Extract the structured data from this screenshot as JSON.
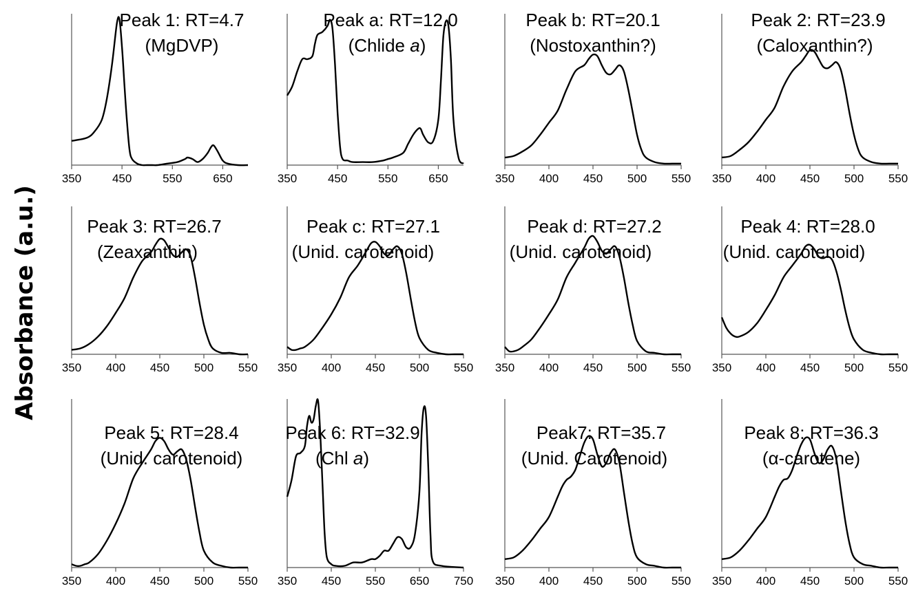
{
  "figure": {
    "ylabel": "Absorbance (a.u.)"
  },
  "chart_data": [
    {
      "type": "line",
      "title": "Peak 1: RT=4.7",
      "subtitle": "(MgDVP)",
      "xlim": [
        350,
        700
      ],
      "xticks": [
        350,
        450,
        550,
        650
      ],
      "ylim": [
        0,
        1
      ],
      "series": [
        {
          "x": [
            350,
            380,
            395,
            410,
            420,
            430,
            440,
            445,
            450,
            455,
            460,
            465,
            470,
            480,
            490,
            500,
            510,
            520,
            540,
            560,
            575,
            580,
            590,
            600,
            610,
            620,
            627,
            632,
            640,
            650,
            660,
            680,
            700
          ],
          "y": [
            0.16,
            0.18,
            0.22,
            0.3,
            0.44,
            0.66,
            0.94,
            0.96,
            0.78,
            0.52,
            0.28,
            0.1,
            0.04,
            0.01,
            0,
            0,
            0,
            0,
            0.01,
            0.02,
            0.04,
            0.05,
            0.04,
            0.02,
            0.04,
            0.08,
            0.12,
            0.13,
            0.09,
            0.03,
            0.01,
            0,
            0
          ]
        }
      ]
    },
    {
      "type": "line",
      "title": "Peak a: RT=12.0",
      "subtitle": "(Chlide a)",
      "xlim": [
        350,
        700
      ],
      "xticks": [
        350,
        450,
        550,
        650
      ],
      "ylim": [
        0,
        1
      ],
      "series": [
        {
          "x": [
            350,
            360,
            370,
            380,
            390,
            400,
            405,
            410,
            420,
            430,
            435,
            440,
            445,
            450,
            455,
            460,
            470,
            480,
            500,
            520,
            540,
            550,
            560,
            580,
            590,
            600,
            610,
            615,
            620,
            630,
            640,
            650,
            655,
            660,
            665,
            670,
            675,
            680,
            690,
            700
          ],
          "y": [
            0.46,
            0.52,
            0.62,
            0.7,
            0.7,
            0.72,
            0.8,
            0.86,
            0.88,
            0.92,
            0.96,
            0.9,
            0.66,
            0.35,
            0.12,
            0.04,
            0.03,
            0.02,
            0.02,
            0.02,
            0.03,
            0.04,
            0.05,
            0.08,
            0.14,
            0.2,
            0.24,
            0.24,
            0.2,
            0.15,
            0.16,
            0.3,
            0.55,
            0.85,
            0.95,
            0.92,
            0.7,
            0.3,
            0.05,
            0.01
          ]
        }
      ]
    },
    {
      "type": "line",
      "title": "Peak b: RT=20.1",
      "subtitle": "(Nostoxanthin?)",
      "xlim": [
        350,
        550
      ],
      "xticks": [
        350,
        400,
        450,
        500,
        550
      ],
      "ylim": [
        0,
        1
      ],
      "series": [
        {
          "x": [
            350,
            360,
            370,
            380,
            390,
            400,
            410,
            420,
            430,
            440,
            445,
            450,
            455,
            460,
            465,
            470,
            475,
            480,
            485,
            490,
            495,
            500,
            505,
            510,
            520,
            530,
            540,
            550
          ],
          "y": [
            0.05,
            0.06,
            0.09,
            0.13,
            0.2,
            0.28,
            0.36,
            0.5,
            0.62,
            0.66,
            0.7,
            0.73,
            0.72,
            0.66,
            0.61,
            0.6,
            0.63,
            0.66,
            0.62,
            0.5,
            0.35,
            0.2,
            0.1,
            0.05,
            0.02,
            0.01,
            0.01,
            0.01
          ]
        }
      ]
    },
    {
      "type": "line",
      "title": "Peak 2: RT=23.9",
      "subtitle": "(Caloxanthin?)",
      "xlim": [
        350,
        550
      ],
      "xticks": [
        350,
        400,
        450,
        500,
        550
      ],
      "ylim": [
        0,
        1
      ],
      "series": [
        {
          "x": [
            350,
            360,
            370,
            380,
            390,
            400,
            410,
            420,
            430,
            440,
            445,
            450,
            455,
            460,
            465,
            470,
            475,
            480,
            485,
            490,
            495,
            500,
            505,
            510,
            520,
            530,
            540,
            550
          ],
          "y": [
            0.05,
            0.06,
            0.1,
            0.15,
            0.22,
            0.3,
            0.38,
            0.52,
            0.62,
            0.68,
            0.72,
            0.76,
            0.75,
            0.7,
            0.65,
            0.64,
            0.66,
            0.68,
            0.63,
            0.5,
            0.34,
            0.2,
            0.1,
            0.05,
            0.02,
            0.01,
            0.01,
            0.01
          ]
        }
      ]
    },
    {
      "type": "line",
      "title": "Peak 3: RT=26.7",
      "subtitle": "(Zeaxanthin)",
      "xlim": [
        350,
        550
      ],
      "xticks": [
        350,
        400,
        450,
        500,
        550
      ],
      "ylim": [
        0,
        1
      ],
      "series": [
        {
          "x": [
            350,
            360,
            370,
            380,
            390,
            400,
            410,
            420,
            430,
            440,
            445,
            450,
            455,
            460,
            465,
            470,
            475,
            480,
            485,
            490,
            495,
            500,
            505,
            510,
            520,
            530,
            540,
            550
          ],
          "y": [
            0.03,
            0.04,
            0.07,
            0.12,
            0.19,
            0.28,
            0.38,
            0.52,
            0.63,
            0.69,
            0.74,
            0.78,
            0.77,
            0.72,
            0.67,
            0.66,
            0.69,
            0.71,
            0.66,
            0.52,
            0.35,
            0.2,
            0.1,
            0.04,
            0.01,
            0.01,
            0,
            0
          ]
        }
      ]
    },
    {
      "type": "line",
      "title": "Peak c: RT=27.1",
      "subtitle": "(Unid. carotenoid)",
      "xlim": [
        350,
        550
      ],
      "xticks": [
        350,
        400,
        450,
        500,
        550
      ],
      "ylim": [
        0,
        1
      ],
      "series": [
        {
          "x": [
            350,
            355,
            360,
            365,
            370,
            380,
            390,
            400,
            410,
            420,
            430,
            440,
            445,
            450,
            455,
            460,
            465,
            470,
            475,
            480,
            485,
            490,
            495,
            500,
            510,
            520,
            530,
            540,
            550
          ],
          "y": [
            0.05,
            0.03,
            0.03,
            0.04,
            0.05,
            0.1,
            0.18,
            0.27,
            0.38,
            0.52,
            0.6,
            0.7,
            0.75,
            0.76,
            0.73,
            0.68,
            0.67,
            0.71,
            0.73,
            0.68,
            0.55,
            0.38,
            0.22,
            0.11,
            0.03,
            0.01,
            0,
            0,
            0
          ]
        }
      ]
    },
    {
      "type": "line",
      "title": "Peak d: RT=27.2",
      "subtitle": "(Unid. carotenoid)",
      "xlim": [
        350,
        550
      ],
      "xticks": [
        350,
        400,
        450,
        500,
        550
      ],
      "ylim": [
        0,
        1
      ],
      "series": [
        {
          "x": [
            350,
            355,
            360,
            365,
            370,
            380,
            390,
            400,
            410,
            420,
            430,
            440,
            445,
            450,
            455,
            460,
            465,
            470,
            475,
            480,
            485,
            490,
            495,
            500,
            510,
            520,
            530,
            540,
            550
          ],
          "y": [
            0.05,
            0.02,
            0.02,
            0.03,
            0.05,
            0.1,
            0.18,
            0.27,
            0.37,
            0.52,
            0.62,
            0.72,
            0.78,
            0.8,
            0.76,
            0.7,
            0.68,
            0.71,
            0.73,
            0.66,
            0.52,
            0.35,
            0.2,
            0.09,
            0.02,
            0.01,
            0,
            0,
            0
          ]
        }
      ]
    },
    {
      "type": "line",
      "title": "Peak 4: RT=28.0",
      "subtitle": "(Unid. carotenoid)",
      "xlim": [
        350,
        550
      ],
      "xticks": [
        350,
        400,
        450,
        500,
        550
      ],
      "ylim": [
        0,
        1
      ],
      "series": [
        {
          "x": [
            350,
            355,
            360,
            365,
            370,
            380,
            390,
            400,
            410,
            420,
            430,
            440,
            445,
            450,
            455,
            460,
            465,
            470,
            475,
            480,
            485,
            490,
            495,
            500,
            510,
            520,
            530,
            540,
            550
          ],
          "y": [
            0.25,
            0.18,
            0.14,
            0.12,
            0.12,
            0.15,
            0.21,
            0.3,
            0.4,
            0.52,
            0.6,
            0.68,
            0.73,
            0.74,
            0.71,
            0.66,
            0.65,
            0.66,
            0.64,
            0.56,
            0.44,
            0.3,
            0.18,
            0.1,
            0.03,
            0.01,
            0,
            0,
            0
          ]
        }
      ]
    },
    {
      "type": "line",
      "title": "Peak 5: RT=28.4",
      "subtitle": "(Unid. carotenoid)",
      "xlim": [
        350,
        550
      ],
      "xticks": [
        350,
        400,
        450,
        500,
        550
      ],
      "ylim": [
        0,
        1
      ],
      "series": [
        {
          "x": [
            350,
            355,
            360,
            365,
            370,
            380,
            390,
            400,
            410,
            420,
            430,
            440,
            445,
            450,
            455,
            460,
            465,
            470,
            475,
            480,
            485,
            490,
            495,
            500,
            510,
            520,
            530,
            540,
            550
          ],
          "y": [
            0.02,
            0.01,
            0.01,
            0.02,
            0.03,
            0.08,
            0.16,
            0.26,
            0.38,
            0.53,
            0.62,
            0.7,
            0.75,
            0.77,
            0.75,
            0.7,
            0.67,
            0.69,
            0.7,
            0.64,
            0.52,
            0.36,
            0.21,
            0.1,
            0.03,
            0.01,
            0,
            0,
            0
          ]
        }
      ]
    },
    {
      "type": "line",
      "title": "Peak 6: RT=32.9",
      "subtitle": "(Chl a)",
      "xlim": [
        350,
        750
      ],
      "xticks": [
        350,
        450,
        550,
        650,
        750
      ],
      "ylim": [
        0,
        1
      ],
      "series": [
        {
          "x": [
            350,
            360,
            370,
            380,
            390,
            395,
            400,
            405,
            410,
            415,
            420,
            425,
            430,
            435,
            440,
            450,
            460,
            480,
            500,
            520,
            540,
            550,
            560,
            570,
            580,
            590,
            600,
            610,
            620,
            630,
            640,
            650,
            655,
            660,
            665,
            670,
            675,
            680,
            700,
            750
          ],
          "y": [
            0.42,
            0.52,
            0.66,
            0.68,
            0.72,
            0.84,
            0.9,
            0.86,
            0.88,
            0.96,
            0.99,
            0.8,
            0.5,
            0.2,
            0.06,
            0.02,
            0.01,
            0.01,
            0.03,
            0.03,
            0.05,
            0.05,
            0.07,
            0.1,
            0.1,
            0.14,
            0.18,
            0.17,
            0.12,
            0.12,
            0.2,
            0.45,
            0.8,
            0.95,
            0.9,
            0.6,
            0.2,
            0.04,
            0.01,
            0
          ]
        }
      ]
    },
    {
      "type": "line",
      "title": "Peak7: RT=35.7",
      "subtitle": "(Unid. Carotenoid)",
      "xlim": [
        350,
        550
      ],
      "xticks": [
        350,
        400,
        450,
        500,
        550
      ],
      "ylim": [
        0,
        1
      ],
      "series": [
        {
          "x": [
            350,
            360,
            370,
            380,
            390,
            400,
            410,
            415,
            420,
            425,
            430,
            435,
            440,
            445,
            450,
            455,
            460,
            465,
            470,
            475,
            480,
            485,
            490,
            495,
            500,
            510,
            520,
            530,
            540,
            550
          ],
          "y": [
            0.05,
            0.06,
            0.1,
            0.16,
            0.23,
            0.3,
            0.42,
            0.48,
            0.52,
            0.54,
            0.58,
            0.66,
            0.74,
            0.78,
            0.76,
            0.67,
            0.6,
            0.62,
            0.68,
            0.7,
            0.62,
            0.45,
            0.28,
            0.14,
            0.06,
            0.02,
            0.01,
            0,
            0,
            0
          ]
        }
      ]
    },
    {
      "type": "line",
      "title": "Peak 8: RT=36.3",
      "subtitle": "(α-carotene)",
      "xlim": [
        350,
        550
      ],
      "xticks": [
        350,
        400,
        450,
        500,
        550
      ],
      "ylim": [
        0,
        1
      ],
      "series": [
        {
          "x": [
            350,
            360,
            370,
            380,
            390,
            400,
            410,
            415,
            420,
            425,
            430,
            435,
            440,
            445,
            450,
            455,
            460,
            465,
            470,
            475,
            480,
            485,
            490,
            495,
            500,
            510,
            520,
            530,
            540,
            550
          ],
          "y": [
            0.05,
            0.06,
            0.1,
            0.16,
            0.23,
            0.3,
            0.42,
            0.48,
            0.52,
            0.53,
            0.58,
            0.66,
            0.73,
            0.77,
            0.76,
            0.68,
            0.62,
            0.64,
            0.7,
            0.72,
            0.64,
            0.46,
            0.28,
            0.14,
            0.06,
            0.02,
            0.01,
            0,
            0,
            0
          ]
        }
      ]
    }
  ]
}
